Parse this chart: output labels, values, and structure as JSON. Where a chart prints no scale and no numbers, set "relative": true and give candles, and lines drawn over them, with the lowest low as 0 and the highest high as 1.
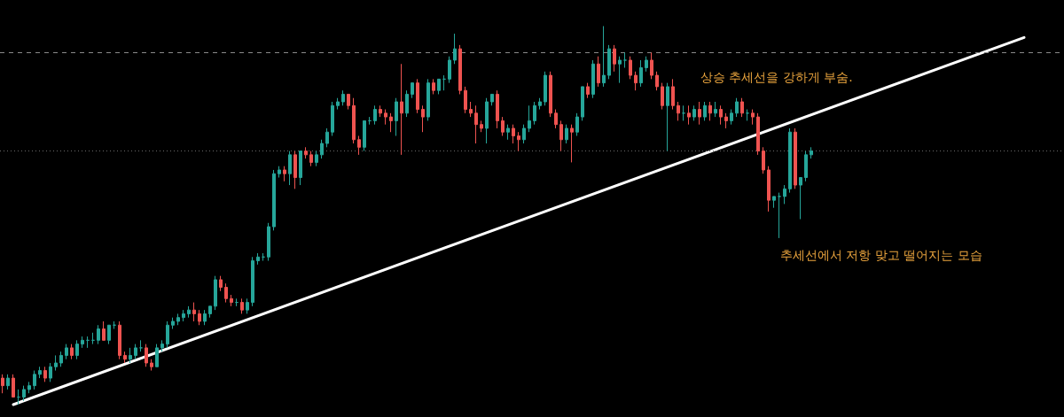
{
  "chart_data": {
    "type": "candlestick",
    "relative": true,
    "grid": false,
    "categories": [
      null,
      null,
      null,
      null,
      null,
      null,
      null,
      null,
      null,
      null,
      null,
      null,
      null,
      null,
      null,
      null,
      null,
      null,
      null,
      null,
      null,
      null,
      null,
      null,
      null,
      null,
      null,
      null,
      null,
      null,
      null,
      null,
      null,
      null,
      null,
      null,
      null,
      null,
      null,
      null,
      null,
      null,
      null,
      null,
      null,
      null,
      null,
      null,
      null,
      null,
      null,
      null,
      null,
      null,
      null,
      null,
      null,
      null,
      null,
      null,
      null,
      null,
      null,
      null,
      null,
      null,
      null,
      null,
      null,
      null,
      null,
      null,
      null,
      null,
      null,
      null,
      null,
      null,
      null,
      null,
      null,
      null,
      null,
      null,
      null,
      null,
      null,
      null,
      null,
      null,
      null,
      null,
      null,
      null,
      null,
      null,
      null,
      null,
      null,
      null,
      null,
      null,
      null,
      null,
      null,
      null,
      null,
      null,
      null,
      null,
      null,
      null,
      null,
      null,
      null,
      null,
      null,
      null,
      null,
      null,
      null,
      null,
      null,
      null,
      null,
      null,
      null,
      null,
      null,
      null,
      null,
      null,
      null,
      null,
      null,
      null,
      null,
      null,
      null,
      null,
      null,
      null,
      null,
      null,
      null,
      null,
      null,
      null,
      null,
      null,
      null,
      null,
      null,
      null,
      null,
      null,
      null,
      null,
      null,
      null,
      null,
      null,
      null,
      null,
      null,
      null,
      null,
      null,
      null,
      null,
      null,
      null,
      null,
      null,
      null,
      null,
      null,
      null,
      null,
      null,
      null,
      null,
      null,
      null,
      null,
      null,
      null,
      null,
      null,
      null,
      null,
      null,
      null,
      null,
      null,
      null,
      null,
      null,
      null,
      null
    ],
    "series": [
      {
        "ohlc": [
          [
            0.07,
            0.08,
            0.03,
            0.05
          ],
          [
            0.05,
            0.08,
            0.04,
            0.07
          ],
          [
            0.07,
            0.08,
            0.02,
            0.02
          ],
          [
            0.02,
            0.04,
            0,
            0.02
          ],
          [
            0.02,
            0.05,
            0.01,
            0.04
          ],
          [
            0.04,
            0.06,
            0.03,
            0.05
          ],
          [
            0.05,
            0.09,
            0.04,
            0.08
          ],
          [
            0.08,
            0.1,
            0.07,
            0.09
          ],
          [
            0.09,
            0.1,
            0.06,
            0.07
          ],
          [
            0.07,
            0.11,
            0.06,
            0.1
          ],
          [
            0.1,
            0.13,
            0.09,
            0.11
          ],
          [
            0.11,
            0.14,
            0.1,
            0.13
          ],
          [
            0.13,
            0.16,
            0.12,
            0.15
          ],
          [
            0.15,
            0.16,
            0.12,
            0.13
          ],
          [
            0.13,
            0.17,
            0.12,
            0.16
          ],
          [
            0.16,
            0.18,
            0.15,
            0.17
          ],
          [
            0.17,
            0.18,
            0.15,
            0.17
          ],
          [
            0.17,
            0.19,
            0.16,
            0.17
          ],
          [
            0.17,
            0.21,
            0.16,
            0.2
          ],
          [
            0.2,
            0.22,
            0.17,
            0.17
          ],
          [
            0.17,
            0.21,
            0.16,
            0.21
          ],
          [
            0.21,
            0.22,
            0.2,
            0.21
          ],
          [
            0.21,
            0.22,
            0.12,
            0.13
          ],
          [
            0.13,
            0.14,
            0.11,
            0.12
          ],
          [
            0.12,
            0.15,
            0.11,
            0.13
          ],
          [
            0.13,
            0.16,
            0.12,
            0.15
          ],
          [
            0.15,
            0.17,
            0.14,
            0.15
          ],
          [
            0.15,
            0.16,
            0.1,
            0.11
          ],
          [
            0.11,
            0.12,
            0.09,
            0.1
          ],
          [
            0.1,
            0.16,
            0.1,
            0.15
          ],
          [
            0.15,
            0.17,
            0.14,
            0.16
          ],
          [
            0.16,
            0.22,
            0.15,
            0.21
          ],
          [
            0.21,
            0.23,
            0.2,
            0.22
          ],
          [
            0.22,
            0.24,
            0.21,
            0.23
          ],
          [
            0.23,
            0.25,
            0.22,
            0.24
          ],
          [
            0.24,
            0.26,
            0.23,
            0.25
          ],
          [
            0.25,
            0.27,
            0.22,
            0.24
          ],
          [
            0.24,
            0.25,
            0.21,
            0.22
          ],
          [
            0.22,
            0.25,
            0.21,
            0.24
          ],
          [
            0.24,
            0.26,
            0.23,
            0.26
          ],
          [
            0.26,
            0.34,
            0.25,
            0.33
          ],
          [
            0.33,
            0.34,
            0.3,
            0.31
          ],
          [
            0.31,
            0.32,
            0.27,
            0.28
          ],
          [
            0.28,
            0.29,
            0.26,
            0.27
          ],
          [
            0.27,
            0.28,
            0.26,
            0.27
          ],
          [
            0.27,
            0.28,
            0.24,
            0.25
          ],
          [
            0.25,
            0.28,
            0.24,
            0.27
          ],
          [
            0.27,
            0.39,
            0.26,
            0.38
          ],
          [
            0.38,
            0.4,
            0.37,
            0.39
          ],
          [
            0.39,
            0.4,
            0.38,
            0.39
          ],
          [
            0.39,
            0.48,
            0.38,
            0.47
          ],
          [
            0.47,
            0.62,
            0.46,
            0.61
          ],
          [
            0.61,
            0.63,
            0.6,
            0.62
          ],
          [
            0.62,
            0.63,
            0.59,
            0.61
          ],
          [
            0.61,
            0.67,
            0.58,
            0.66
          ],
          [
            0.66,
            0.67,
            0.57,
            0.6
          ],
          [
            0.6,
            0.67,
            0.58,
            0.67
          ],
          [
            0.67,
            0.68,
            0.65,
            0.66
          ],
          [
            0.66,
            0.67,
            0.63,
            0.64
          ],
          [
            0.64,
            0.67,
            0.63,
            0.66
          ],
          [
            0.66,
            0.7,
            0.65,
            0.69
          ],
          [
            0.69,
            0.73,
            0.68,
            0.72
          ],
          [
            0.72,
            0.8,
            0.71,
            0.79
          ],
          [
            0.79,
            0.81,
            0.78,
            0.8
          ],
          [
            0.8,
            0.83,
            0.79,
            0.82
          ],
          [
            0.82,
            0.82,
            0.78,
            0.79
          ],
          [
            0.79,
            0.81,
            0.69,
            0.7
          ],
          [
            0.7,
            0.71,
            0.66,
            0.68
          ],
          [
            0.68,
            0.75,
            0.67,
            0.75
          ],
          [
            0.75,
            0.76,
            0.74,
            0.75
          ],
          [
            0.75,
            0.79,
            0.74,
            0.78
          ],
          [
            0.78,
            0.79,
            0.76,
            0.77
          ],
          [
            0.77,
            0.78,
            0.74,
            0.76
          ],
          [
            0.76,
            0.77,
            0.72,
            0.75
          ],
          [
            0.75,
            0.81,
            0.71,
            0.8
          ],
          [
            0.8,
            0.9,
            0.66,
            0.77
          ],
          [
            0.77,
            0.83,
            0.76,
            0.82
          ],
          [
            0.82,
            0.85,
            0.81,
            0.85
          ],
          [
            0.85,
            0.86,
            0.77,
            0.78
          ],
          [
            0.78,
            0.79,
            0.72,
            0.76
          ],
          [
            0.76,
            0.86,
            0.75,
            0.85
          ],
          [
            0.85,
            0.86,
            0.82,
            0.83
          ],
          [
            0.83,
            0.86,
            0.82,
            0.86
          ],
          [
            0.86,
            0.87,
            0.83,
            0.86
          ],
          [
            0.86,
            0.92,
            0.85,
            0.91
          ],
          [
            0.91,
            0.98,
            0.9,
            0.94
          ],
          [
            0.94,
            0.95,
            0.82,
            0.83
          ],
          [
            0.83,
            0.84,
            0.77,
            0.78
          ],
          [
            0.78,
            0.8,
            0.76,
            0.77
          ],
          [
            0.77,
            0.79,
            0.69,
            0.74
          ],
          [
            0.74,
            0.75,
            0.72,
            0.73
          ],
          [
            0.73,
            0.81,
            0.69,
            0.8
          ],
          [
            0.8,
            0.82,
            0.79,
            0.82
          ],
          [
            0.82,
            0.83,
            0.73,
            0.75
          ],
          [
            0.75,
            0.76,
            0.71,
            0.72
          ],
          [
            0.72,
            0.74,
            0.7,
            0.73
          ],
          [
            0.73,
            0.74,
            0.69,
            0.71
          ],
          [
            0.71,
            0.72,
            0.67,
            0.7
          ],
          [
            0.7,
            0.74,
            0.69,
            0.73
          ],
          [
            0.73,
            0.79,
            0.72,
            0.75
          ],
          [
            0.75,
            0.8,
            0.74,
            0.79
          ],
          [
            0.79,
            0.81,
            0.78,
            0.8
          ],
          [
            0.8,
            0.88,
            0.79,
            0.87
          ],
          [
            0.87,
            0.88,
            0.76,
            0.77
          ],
          [
            0.77,
            0.78,
            0.73,
            0.74
          ],
          [
            0.74,
            0.75,
            0.67,
            0.7
          ],
          [
            0.7,
            0.74,
            0.69,
            0.73
          ],
          [
            0.73,
            0.74,
            0.64,
            0.72
          ],
          [
            0.72,
            0.77,
            0.71,
            0.76
          ],
          [
            0.76,
            0.84,
            0.75,
            0.84
          ],
          [
            0.84,
            0.85,
            0.81,
            0.82
          ],
          [
            0.82,
            0.91,
            0.81,
            0.9
          ],
          [
            0.9,
            0.92,
            0.84,
            0.85
          ],
          [
            0.85,
            1,
            0.84,
            0.87
          ],
          [
            0.87,
            0.95,
            0.86,
            0.94
          ],
          [
            0.94,
            0.95,
            0.88,
            0.9
          ],
          [
            0.9,
            0.92,
            0.85,
            0.91
          ],
          [
            0.91,
            0.93,
            0.89,
            0.91
          ],
          [
            0.91,
            0.92,
            0.86,
            0.87
          ],
          [
            0.87,
            0.88,
            0.83,
            0.85
          ],
          [
            0.85,
            0.91,
            0.84,
            0.89
          ],
          [
            0.89,
            0.92,
            0.88,
            0.91
          ],
          [
            0.91,
            0.93,
            0.86,
            0.87
          ],
          [
            0.87,
            0.88,
            0.83,
            0.84
          ],
          [
            0.84,
            0.85,
            0.78,
            0.79
          ],
          [
            0.79,
            0.85,
            0.67,
            0.84
          ],
          [
            0.84,
            0.86,
            0.78,
            0.79
          ],
          [
            0.79,
            0.8,
            0.75,
            0.77
          ],
          [
            0.77,
            0.79,
            0.75,
            0.77
          ],
          [
            0.77,
            0.79,
            0.74,
            0.76
          ],
          [
            0.76,
            0.79,
            0.75,
            0.78
          ],
          [
            0.78,
            0.8,
            0.74,
            0.76
          ],
          [
            0.76,
            0.8,
            0.75,
            0.79
          ],
          [
            0.79,
            0.8,
            0.75,
            0.77
          ],
          [
            0.77,
            0.8,
            0.76,
            0.78
          ],
          [
            0.78,
            0.79,
            0.74,
            0.76
          ],
          [
            0.76,
            0.77,
            0.73,
            0.75
          ],
          [
            0.75,
            0.78,
            0.74,
            0.77
          ],
          [
            0.77,
            0.81,
            0.76,
            0.8
          ],
          [
            0.8,
            0.81,
            0.76,
            0.77
          ],
          [
            0.77,
            0.78,
            0.75,
            0.77
          ],
          [
            0.77,
            0.78,
            0.74,
            0.76
          ],
          [
            0.76,
            0.77,
            0.66,
            0.67
          ],
          [
            0.67,
            0.68,
            0.61,
            0.62
          ],
          [
            0.62,
            0.63,
            0.51,
            0.54
          ],
          [
            0.54,
            0.55,
            0.52,
            0.55
          ],
          [
            0.55,
            0.56,
            0.44,
            0.55
          ],
          [
            0.55,
            0.58,
            0.53,
            0.57
          ],
          [
            0.57,
            0.73,
            0.56,
            0.72
          ],
          [
            0.72,
            0.73,
            0.57,
            0.58
          ],
          [
            0.58,
            0.6,
            0.49,
            0.6
          ],
          [
            0.6,
            0.67,
            0.59,
            0.66
          ],
          [
            0.66,
            0.68,
            0.65,
            0.67
          ],
          null,
          null,
          null,
          null,
          null,
          null,
          null,
          null,
          null,
          null,
          null,
          null,
          null,
          null,
          null,
          null,
          null,
          null,
          null,
          null,
          null,
          null,
          null,
          null,
          null,
          null,
          null,
          null,
          null,
          null,
          null,
          null,
          null,
          null,
          null,
          null,
          null,
          null,
          null,
          null,
          null,
          null,
          null,
          null,
          null,
          null,
          null
        ],
        "colors": [
          "#ef5350",
          "#26a69a",
          "#ef5350",
          "#26a69a",
          "#26a69a",
          "#26a69a",
          "#26a69a",
          "#26a69a",
          "#ef5350",
          "#26a69a",
          "#26a69a",
          "#26a69a",
          "#26a69a",
          "#ef5350",
          "#26a69a",
          "#26a69a",
          "#26a69a",
          "#26a69a",
          "#26a69a",
          "#ef5350",
          "#26a69a",
          "#26a69a",
          "#ef5350",
          "#ef5350",
          "#26a69a",
          "#26a69a",
          "#26a69a",
          "#ef5350",
          "#ef5350",
          "#26a69a",
          "#26a69a",
          "#26a69a",
          "#26a69a",
          "#26a69a",
          "#26a69a",
          "#26a69a",
          "#ef5350",
          "#ef5350",
          "#26a69a",
          "#26a69a",
          "#26a69a",
          "#ef5350",
          "#ef5350",
          "#ef5350",
          "#26a69a",
          "#ef5350",
          "#26a69a",
          "#26a69a",
          "#26a69a",
          "#26a69a",
          "#26a69a",
          "#26a69a",
          "#26a69a",
          "#ef5350",
          "#26a69a",
          "#ef5350",
          "#26a69a",
          "#ef5350",
          "#ef5350",
          "#26a69a",
          "#26a69a",
          "#26a69a",
          "#26a69a",
          "#26a69a",
          "#26a69a",
          "#ef5350",
          "#ef5350",
          "#ef5350",
          "#26a69a",
          "#26a69a",
          "#26a69a",
          "#ef5350",
          "#ef5350",
          "#ef5350",
          "#26a69a",
          "#ef5350",
          "#26a69a",
          "#26a69a",
          "#ef5350",
          "#ef5350",
          "#26a69a",
          "#ef5350",
          "#26a69a",
          "#26a69a",
          "#26a69a",
          "#26a69a",
          "#ef5350",
          "#ef5350",
          "#ef5350",
          "#ef5350",
          "#ef5350",
          "#26a69a",
          "#26a69a",
          "#ef5350",
          "#ef5350",
          "#26a69a",
          "#ef5350",
          "#ef5350",
          "#26a69a",
          "#26a69a",
          "#26a69a",
          "#26a69a",
          "#26a69a",
          "#ef5350",
          "#ef5350",
          "#ef5350",
          "#26a69a",
          "#ef5350",
          "#26a69a",
          "#26a69a",
          "#ef5350",
          "#26a69a",
          "#ef5350",
          "#26a69a",
          "#26a69a",
          "#ef5350",
          "#26a69a",
          "#26a69a",
          "#ef5350",
          "#ef5350",
          "#26a69a",
          "#26a69a",
          "#ef5350",
          "#ef5350",
          "#ef5350",
          "#26a69a",
          "#ef5350",
          "#ef5350",
          "#26a69a",
          "#ef5350",
          "#26a69a",
          "#ef5350",
          "#26a69a",
          "#ef5350",
          "#26a69a",
          "#ef5350",
          "#ef5350",
          "#26a69a",
          "#26a69a",
          "#ef5350",
          "#26a69a",
          "#ef5350",
          "#ef5350",
          "#ef5350",
          "#ef5350",
          "#26a69a",
          "#26a69a",
          "#26a69a",
          "#26a69a",
          "#ef5350",
          "#26a69a",
          "#26a69a",
          "#26a69a",
          null,
          null,
          null,
          null,
          null,
          null,
          null,
          null,
          null,
          null,
          null,
          null,
          null,
          null,
          null,
          null,
          null,
          null,
          null,
          null,
          null,
          null,
          null,
          null,
          null,
          null,
          null,
          null,
          null,
          null,
          null,
          null,
          null,
          null,
          null,
          null,
          null,
          null,
          null,
          null,
          null,
          null,
          null,
          null,
          null,
          null,
          null
        ]
      },
      {
        "type": "line",
        "color": "#ffffff",
        "values": [
          null,
          null,
          0,
          null,
          null,
          null,
          null,
          null,
          null,
          null,
          null,
          null,
          null,
          null,
          null,
          null,
          null,
          null,
          null,
          null,
          null,
          null,
          null,
          null,
          null,
          null,
          null,
          null,
          null,
          null,
          null,
          null,
          null,
          null,
          null,
          null,
          null,
          null,
          null,
          null,
          null,
          null,
          null,
          null,
          null,
          null,
          null,
          null,
          null,
          null,
          null,
          null,
          null,
          null,
          null,
          null,
          null,
          null,
          null,
          null,
          null,
          null,
          null,
          null,
          null,
          null,
          null,
          null,
          null,
          null,
          null,
          null,
          null,
          null,
          null,
          null,
          null,
          null,
          null,
          null,
          null,
          null,
          null,
          null,
          null,
          null,
          null,
          null,
          null,
          null,
          null,
          null,
          null,
          null,
          null,
          null,
          null,
          null,
          null,
          null,
          null,
          null,
          null,
          null,
          null,
          null,
          null,
          null,
          null,
          null,
          null,
          null,
          null,
          null,
          null,
          null,
          null,
          null,
          null,
          null,
          null,
          null,
          null,
          null,
          null,
          null,
          null,
          null,
          null,
          null,
          null,
          null,
          null,
          null,
          null,
          null,
          null,
          null,
          null,
          null,
          null,
          null,
          null,
          null,
          null,
          null,
          null,
          null,
          null,
          null,
          null,
          null,
          null,
          null,
          null,
          null,
          null,
          null,
          null,
          null,
          null,
          null,
          null,
          null,
          null,
          null,
          null,
          null,
          null,
          null,
          null,
          null,
          null,
          null,
          null,
          null,
          null,
          null,
          null,
          null,
          null,
          null,
          null,
          null,
          null,
          null,
          null,
          null,
          null,
          null,
          null,
          null,
          0.97,
          null,
          null,
          null,
          null,
          null,
          null,
          null
        ]
      }
    ],
    "ref_lines": [
      {
        "axis": "y",
        "value": 0.93,
        "color": "#8a8a8a",
        "line_style": "dashed"
      },
      {
        "axis": "y",
        "value": 0.67,
        "color": "#6a6a6a",
        "line_style": "dotted"
      }
    ],
    "annotations": [
      "상승 추세선을 강하게 부숨.",
      "추세선에서 저항 맞고 떨어지는 모습"
    ]
  }
}
